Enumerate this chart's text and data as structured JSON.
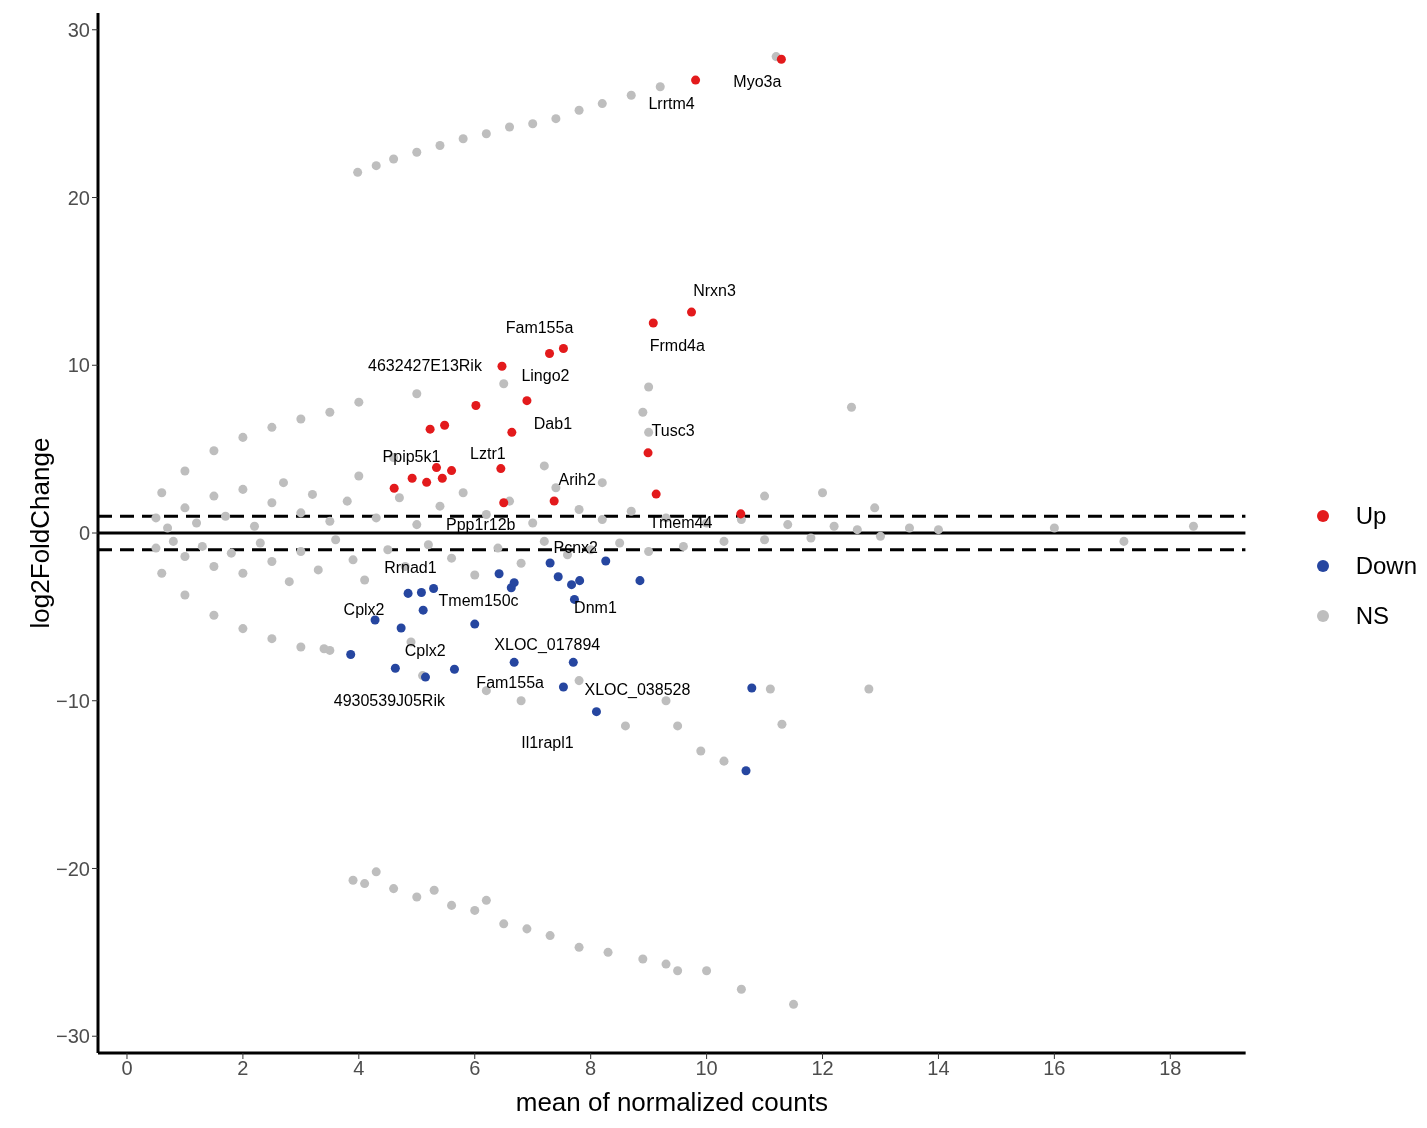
{
  "chart_data": {
    "type": "scatter",
    "xlabel": "mean of normalized counts",
    "ylabel": "log2FoldChange",
    "xlim": [
      -0.5,
      19.3
    ],
    "xticks": [
      0,
      2,
      4,
      6,
      8,
      10,
      12,
      14,
      16,
      18
    ],
    "ylim": [
      -31,
      31
    ],
    "yticks": [
      -30,
      -20,
      -10,
      0,
      10,
      20,
      30
    ],
    "grid": false,
    "legend": "right",
    "marker": "circle",
    "series": [
      {
        "name": "NS",
        "color": "#bebebe",
        "x": [
          0.5,
          0.5,
          0.7,
          0.8,
          1.0,
          1.0,
          1.2,
          1.3,
          1.5,
          1.5,
          1.7,
          1.8,
          2.0,
          2.0,
          2.2,
          2.3,
          2.5,
          2.5,
          2.7,
          2.8,
          3.0,
          3.0,
          3.2,
          3.3,
          3.5,
          3.6,
          3.8,
          3.9,
          4.0,
          4.1,
          4.3,
          4.5,
          4.7,
          4.8,
          5.0,
          5.2,
          5.4,
          5.6,
          5.8,
          6.0,
          6.2,
          6.4,
          6.6,
          6.8,
          7.0,
          7.2,
          7.4,
          7.6,
          7.8,
          8.0,
          8.2,
          8.5,
          8.7,
          9.0,
          9.3,
          9.6,
          10.0,
          10.3,
          10.6,
          11.0,
          11.4,
          11.8,
          12.2,
          12.6,
          13.0,
          13.5,
          0.6,
          1.0,
          1.5,
          2.0,
          2.5,
          3.0,
          3.5,
          4.0,
          0.6,
          1.0,
          1.5,
          2.0,
          2.5,
          3.0,
          3.5,
          3.98,
          4.3,
          4.6,
          5.0,
          5.4,
          5.8,
          6.2,
          6.6,
          7.0,
          7.4,
          7.8,
          8.2,
          8.7,
          9.2,
          11.2,
          3.9,
          4.1,
          4.3,
          4.6,
          5.0,
          5.3,
          5.6,
          6.0,
          6.2,
          6.5,
          6.9,
          7.3,
          7.8,
          8.3,
          8.9,
          9.3,
          9.5,
          10.0,
          10.6,
          11.5,
          9.0,
          12.5,
          12.8,
          11.1,
          18.4,
          17.2,
          16.0,
          14.0,
          12.9,
          12.0,
          11.0,
          9.9,
          10.3,
          11.3,
          9.5,
          9.3,
          8.6,
          6.2,
          6.8,
          7.8,
          4.9,
          5.1,
          3.4,
          6.5,
          5.0,
          8.9,
          9.0,
          4.6,
          7.2,
          8.2
        ],
        "values": [
          0.9,
          -0.9,
          0.3,
          -0.5,
          1.5,
          -1.4,
          0.6,
          -0.8,
          2.2,
          -2.0,
          1.0,
          -1.2,
          2.6,
          -2.4,
          0.4,
          -0.6,
          1.8,
          -1.7,
          3.0,
          -2.9,
          1.2,
          -1.1,
          2.3,
          -2.2,
          0.7,
          -0.4,
          1.9,
          -1.6,
          3.4,
          -2.8,
          0.9,
          -1.0,
          2.1,
          -2.0,
          0.5,
          -0.7,
          1.6,
          -1.5,
          2.4,
          -2.5,
          1.1,
          -0.9,
          1.9,
          -1.8,
          0.6,
          -0.5,
          2.7,
          -1.3,
          1.4,
          -1.0,
          0.8,
          -0.6,
          1.3,
          -1.1,
          0.9,
          -0.8,
          0.6,
          -0.5,
          0.8,
          -0.4,
          0.5,
          -0.3,
          0.4,
          0.2,
          -0.2,
          0.3,
          2.4,
          3.7,
          4.9,
          5.7,
          6.3,
          6.8,
          7.2,
          7.8,
          -2.4,
          -3.7,
          -4.9,
          -5.7,
          -6.3,
          -6.8,
          -7.0,
          21.5,
          21.9,
          22.3,
          22.7,
          23.1,
          23.5,
          23.8,
          24.2,
          24.4,
          24.7,
          25.2,
          25.6,
          26.1,
          26.6,
          28.4,
          -20.7,
          -20.9,
          -20.2,
          -21.2,
          -21.7,
          -21.3,
          -22.2,
          -22.5,
          -21.9,
          -23.3,
          -23.6,
          -24.0,
          -24.7,
          -25.0,
          -25.4,
          -25.7,
          -26.1,
          -26.1,
          -27.2,
          -28.1,
          8.7,
          7.5,
          -9.3,
          -9.3,
          0.4,
          -0.5,
          0.3,
          0.2,
          1.5,
          2.4,
          2.2,
          -13.0,
          -13.6,
          -11.4,
          -11.5,
          -10.0,
          -11.5,
          -9.4,
          -10.0,
          -8.8,
          -6.5,
          -8.5,
          -6.9,
          8.9,
          8.3,
          7.2,
          6.0,
          4.5,
          4.0,
          3.0
        ]
      },
      {
        "name": "Up",
        "color": "#e31a1c",
        "x": [
          11.29,
          9.81,
          9.74,
          9.08,
          7.29,
          7.53,
          6.47,
          6.9,
          6.02,
          6.64,
          5.48,
          5.23,
          8.99,
          5.34,
          5.6,
          4.92,
          5.17,
          5.44,
          4.61,
          6.45,
          9.13,
          7.37,
          10.59,
          6.5
        ],
        "values": [
          28.24,
          27.0,
          13.17,
          12.52,
          10.7,
          11.0,
          9.94,
          7.89,
          7.6,
          6.0,
          6.42,
          6.19,
          4.78,
          3.9,
          3.72,
          3.26,
          3.02,
          3.26,
          2.67,
          3.84,
          2.32,
          1.91,
          1.14,
          1.8
        ]
      },
      {
        "name": "Down",
        "color": "#2646a0",
        "x": [
          4.28,
          4.73,
          3.86,
          4.63,
          5.15,
          5.65,
          4.85,
          5.08,
          5.29,
          5.11,
          6.0,
          6.68,
          7.7,
          7.53,
          8.1,
          10.78,
          10.68,
          6.42,
          6.63,
          6.68,
          7.3,
          8.26,
          7.44,
          7.67,
          7.81,
          7.72,
          8.85
        ],
        "values": [
          -5.19,
          -5.66,
          -7.24,
          -8.06,
          -8.59,
          -8.12,
          -3.6,
          -3.55,
          -3.31,
          -4.6,
          -5.43,
          -7.71,
          -7.71,
          -9.18,
          -10.65,
          -9.24,
          -14.17,
          -2.43,
          -3.26,
          -2.96,
          -1.79,
          -1.67,
          -2.61,
          -3.08,
          -2.84,
          -3.96,
          -2.84
        ]
      }
    ],
    "ref_lines": [
      {
        "axis": "y",
        "value": 0,
        "line_style": "solid"
      },
      {
        "axis": "y",
        "value": 1,
        "line_style": "dashed"
      },
      {
        "axis": "y",
        "value": -1,
        "line_style": "dashed"
      }
    ],
    "annotations": [
      {
        "text": "Myo3a",
        "x": 11.29,
        "y": 28.24
      },
      {
        "text": "Lrrtm4",
        "x": 9.81,
        "y": 27.0
      },
      {
        "text": "Nrxn3",
        "x": 9.74,
        "y": 13.17
      },
      {
        "text": "Fam155a",
        "x": 7.29,
        "y": 10.7
      },
      {
        "text": "Frmd4a",
        "x": 9.08,
        "y": 12.52
      },
      {
        "text": "4632427E13Rik",
        "x": 6.47,
        "y": 9.94
      },
      {
        "text": "Lingo2",
        "x": 7.53,
        "y": 11.0
      },
      {
        "text": "Dab1",
        "x": 6.9,
        "y": 7.89
      },
      {
        "text": "Tusc3",
        "x": 8.99,
        "y": 4.78
      },
      {
        "text": "Ppip5k1",
        "x": 5.34,
        "y": 3.9
      },
      {
        "text": "Lztr1",
        "x": 6.45,
        "y": 3.84
      },
      {
        "text": "Arih2",
        "x": 7.37,
        "y": 1.91
      },
      {
        "text": "Tmem44",
        "x": 10.59,
        "y": 1.14
      },
      {
        "text": "Ppp1r12b",
        "x": 6.5,
        "y": 1.8
      },
      {
        "text": "Pcnx2",
        "x": 8.26,
        "y": -1.67
      },
      {
        "text": "Rrnad1",
        "x": 5.08,
        "y": -3.55
      },
      {
        "text": "Cplx2",
        "x": 4.28,
        "y": -5.19
      },
      {
        "text": "Tmem150c",
        "x": 5.29,
        "y": -3.31
      },
      {
        "text": "Dnm1",
        "x": 7.72,
        "y": -3.96
      },
      {
        "text": "XLOC_017894",
        "x": 7.7,
        "y": -7.71
      },
      {
        "text": "Cplx2",
        "x": 4.73,
        "y": -5.66
      },
      {
        "text": "Fam155a",
        "x": 6.68,
        "y": -7.71
      },
      {
        "text": "XLOC_038528",
        "x": 7.53,
        "y": -9.18
      },
      {
        "text": "4930539J05Rik",
        "x": 4.63,
        "y": -8.06
      },
      {
        "text": "Il1rapl1",
        "x": 8.1,
        "y": -10.65
      }
    ]
  }
}
